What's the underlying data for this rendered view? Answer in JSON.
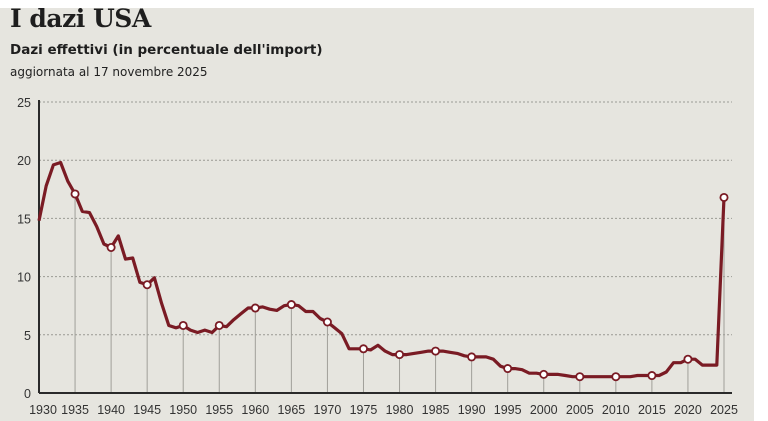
{
  "title": "I dazi USA",
  "subtitle": "Dazi effettivi (in percentuale dell'import)",
  "note": "aggiornata al 17 novembre 2025",
  "colors": {
    "line": "#7a1b24",
    "background": "#e6e5df",
    "grid": "#9a9a94",
    "axis": "#2a2a2a"
  },
  "chart_data": {
    "type": "line",
    "title": "I dazi USA",
    "subtitle": "Dazi effettivi (in percentuale dell'import)",
    "xlim": [
      1930,
      2025
    ],
    "ylim": [
      0,
      25
    ],
    "grid": "horizontal dashed",
    "x_ticks": [
      "1930",
      "1935",
      "1940",
      "1945",
      "1950",
      "1955",
      "1960",
      "1965",
      "1970",
      "1975",
      "1980",
      "1985",
      "1990",
      "1995",
      "2000",
      "2005",
      "2010",
      "2015",
      "2020",
      "2025"
    ],
    "y_ticks": [
      "0",
      "5",
      "10",
      "15",
      "20",
      "25"
    ],
    "x": [
      1930,
      1931,
      1932,
      1933,
      1934,
      1935,
      1936,
      1937,
      1938,
      1939,
      1940,
      1941,
      1942,
      1943,
      1944,
      1945,
      1946,
      1947,
      1948,
      1949,
      1950,
      1951,
      1952,
      1953,
      1954,
      1955,
      1956,
      1957,
      1958,
      1959,
      1960,
      1961,
      1962,
      1963,
      1964,
      1965,
      1966,
      1967,
      1968,
      1969,
      1970,
      1971,
      1972,
      1973,
      1974,
      1975,
      1976,
      1977,
      1978,
      1979,
      1980,
      1981,
      1982,
      1983,
      1984,
      1985,
      1986,
      1987,
      1988,
      1989,
      1990,
      1991,
      1992,
      1993,
      1994,
      1995,
      1996,
      1997,
      1998,
      1999,
      2000,
      2001,
      2002,
      2003,
      2004,
      2005,
      2006,
      2007,
      2008,
      2009,
      2010,
      2011,
      2012,
      2013,
      2014,
      2015,
      2016,
      2017,
      2018,
      2019,
      2020,
      2021,
      2022,
      2023,
      2024,
      2025
    ],
    "y": [
      14.8,
      17.8,
      19.6,
      19.8,
      18.2,
      17.1,
      15.6,
      15.5,
      14.3,
      12.8,
      12.5,
      13.5,
      11.5,
      11.6,
      9.5,
      9.3,
      9.9,
      7.7,
      5.8,
      5.6,
      5.8,
      5.4,
      5.2,
      5.4,
      5.2,
      5.8,
      5.7,
      6.3,
      6.8,
      7.3,
      7.3,
      7.4,
      7.2,
      7.1,
      7.5,
      7.6,
      7.5,
      7.0,
      7.0,
      6.4,
      6.1,
      5.6,
      5.1,
      3.8,
      3.8,
      3.8,
      3.7,
      4.1,
      3.6,
      3.3,
      3.3,
      3.3,
      3.4,
      3.5,
      3.6,
      3.6,
      3.6,
      3.5,
      3.4,
      3.2,
      3.1,
      3.1,
      3.1,
      2.9,
      2.3,
      2.1,
      2.1,
      2.0,
      1.7,
      1.7,
      1.6,
      1.6,
      1.6,
      1.5,
      1.4,
      1.4,
      1.4,
      1.4,
      1.4,
      1.4,
      1.4,
      1.4,
      1.4,
      1.5,
      1.5,
      1.5,
      1.5,
      1.8,
      2.6,
      2.6,
      2.9,
      2.9,
      2.4,
      2.4,
      2.4,
      16.8
    ],
    "markers": [
      1935,
      1940,
      1945,
      1950,
      1955,
      1960,
      1965,
      1970,
      1975,
      1980,
      1985,
      1990,
      1995,
      2000,
      2005,
      2010,
      2015,
      2020,
      2025
    ]
  }
}
